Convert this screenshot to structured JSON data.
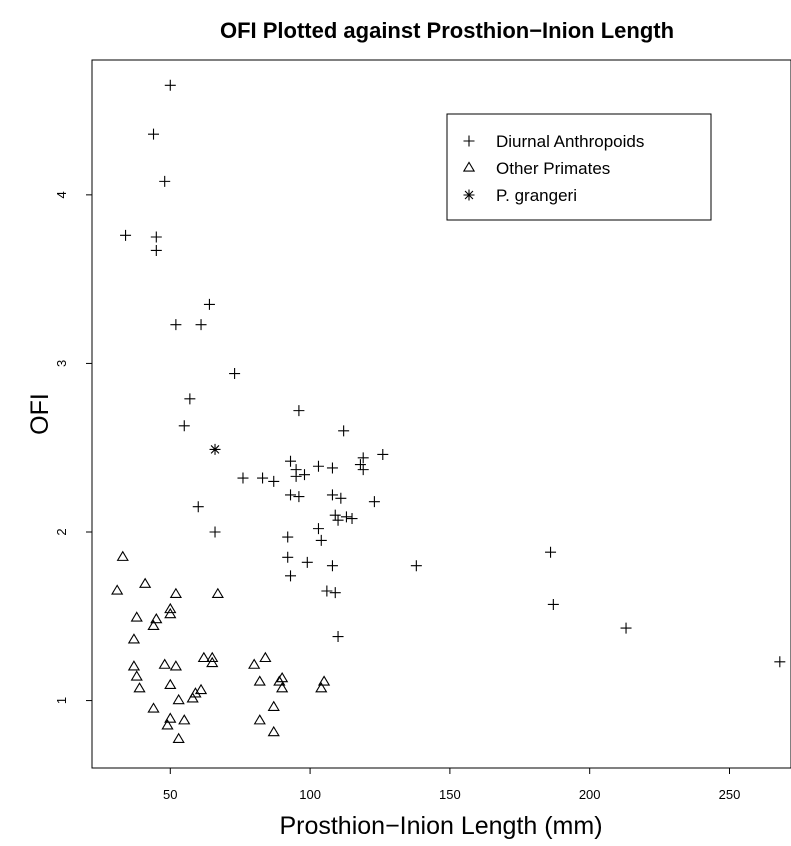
{
  "chart_data": {
    "type": "scatter",
    "title": "OFI Plotted against Prosthion−Inion Length",
    "xlabel": "Prosthion−Inion Length (mm)",
    "ylabel": "OFI",
    "xlim": [
      22,
      272
    ],
    "ylim": [
      0.6,
      4.8
    ],
    "x_ticks": [
      50,
      100,
      150,
      200,
      250
    ],
    "y_ticks": [
      1,
      2,
      3,
      4
    ],
    "grid": false,
    "legend": "top-right",
    "series": [
      {
        "name": "Diurnal Anthropoids",
        "marker": "plus",
        "points": [
          [
            50,
            4.65
          ],
          [
            44,
            4.36
          ],
          [
            48,
            4.08
          ],
          [
            34,
            3.76
          ],
          [
            45,
            3.75
          ],
          [
            45,
            3.67
          ],
          [
            64,
            3.35
          ],
          [
            52,
            3.23
          ],
          [
            61,
            3.23
          ],
          [
            73,
            2.94
          ],
          [
            57,
            2.79
          ],
          [
            55,
            2.63
          ],
          [
            96,
            2.72
          ],
          [
            112,
            2.6
          ],
          [
            126,
            2.46
          ],
          [
            119,
            2.44
          ],
          [
            118,
            2.4
          ],
          [
            119,
            2.37
          ],
          [
            93,
            2.42
          ],
          [
            95,
            2.37
          ],
          [
            103,
            2.39
          ],
          [
            108,
            2.38
          ],
          [
            95,
            2.33
          ],
          [
            98,
            2.34
          ],
          [
            76,
            2.32
          ],
          [
            83,
            2.32
          ],
          [
            87,
            2.3
          ],
          [
            93,
            2.22
          ],
          [
            96,
            2.21
          ],
          [
            108,
            2.22
          ],
          [
            111,
            2.2
          ],
          [
            123,
            2.18
          ],
          [
            60,
            2.15
          ],
          [
            109,
            2.1
          ],
          [
            113,
            2.09
          ],
          [
            115,
            2.08
          ],
          [
            110,
            2.07
          ],
          [
            103,
            2.02
          ],
          [
            66,
            2.0
          ],
          [
            92,
            1.97
          ],
          [
            104,
            1.95
          ],
          [
            186,
            1.88
          ],
          [
            92,
            1.85
          ],
          [
            99,
            1.82
          ],
          [
            108,
            1.8
          ],
          [
            138,
            1.8
          ],
          [
            93,
            1.74
          ],
          [
            106,
            1.65
          ],
          [
            109,
            1.64
          ],
          [
            187,
            1.57
          ],
          [
            213,
            1.43
          ],
          [
            110,
            1.38
          ],
          [
            268,
            1.23
          ]
        ]
      },
      {
        "name": "Other Primates",
        "marker": "triangle",
        "points": [
          [
            33,
            1.85
          ],
          [
            41,
            1.69
          ],
          [
            31,
            1.65
          ],
          [
            52,
            1.63
          ],
          [
            67,
            1.63
          ],
          [
            50,
            1.54
          ],
          [
            50,
            1.51
          ],
          [
            38,
            1.49
          ],
          [
            45,
            1.48
          ],
          [
            44,
            1.44
          ],
          [
            37,
            1.36
          ],
          [
            62,
            1.25
          ],
          [
            65,
            1.25
          ],
          [
            84,
            1.25
          ],
          [
            65,
            1.22
          ],
          [
            37,
            1.2
          ],
          [
            48,
            1.21
          ],
          [
            52,
            1.2
          ],
          [
            80,
            1.21
          ],
          [
            38,
            1.14
          ],
          [
            90,
            1.13
          ],
          [
            82,
            1.11
          ],
          [
            89,
            1.11
          ],
          [
            105,
            1.11
          ],
          [
            39,
            1.07
          ],
          [
            50,
            1.09
          ],
          [
            104,
            1.07
          ],
          [
            90,
            1.07
          ],
          [
            61,
            1.06
          ],
          [
            59,
            1.04
          ],
          [
            58,
            1.01
          ],
          [
            53,
            1.0
          ],
          [
            44,
            0.95
          ],
          [
            87,
            0.96
          ],
          [
            50,
            0.89
          ],
          [
            55,
            0.88
          ],
          [
            82,
            0.88
          ],
          [
            49,
            0.85
          ],
          [
            87,
            0.81
          ],
          [
            53,
            0.77
          ]
        ]
      },
      {
        "name": "P. grangeri",
        "marker": "asterisk",
        "points": [
          [
            66,
            2.49
          ]
        ]
      }
    ]
  }
}
